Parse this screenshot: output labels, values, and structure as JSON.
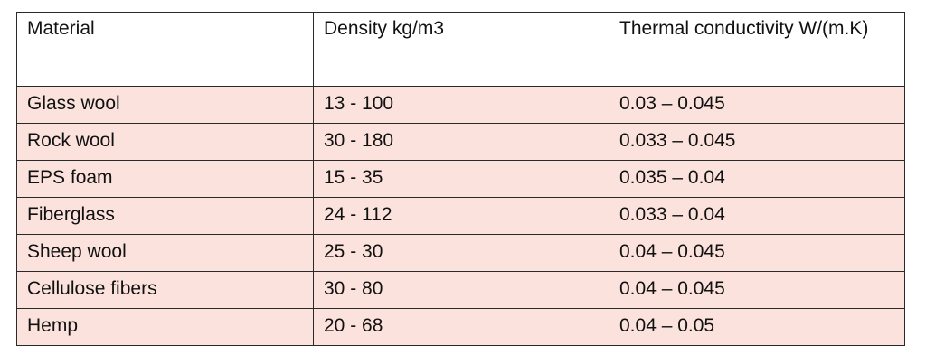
{
  "table": {
    "headers": [
      "Material",
      "Density kg/m3",
      "Thermal conductivity W/(m.K)"
    ],
    "rows": [
      [
        "Glass wool",
        "13 - 100",
        "0.03 – 0.045"
      ],
      [
        "Rock wool",
        "30 - 180",
        "0.033 – 0.045"
      ],
      [
        "EPS foam",
        "15 - 35",
        "0.035 – 0.04"
      ],
      [
        "Fiberglass",
        "24 - 112",
        "0.033 – 0.04"
      ],
      [
        "Sheep wool",
        "25 - 30",
        "0.04 – 0.045"
      ],
      [
        "Cellulose fibers",
        "30 - 80",
        "0.04 – 0.045"
      ],
      [
        "Hemp",
        "20 - 68",
        "0.04 – 0.05"
      ]
    ]
  },
  "colors": {
    "row_background": "#fbe2dc",
    "header_background": "#ffffff",
    "border": "#2a2a2a"
  }
}
